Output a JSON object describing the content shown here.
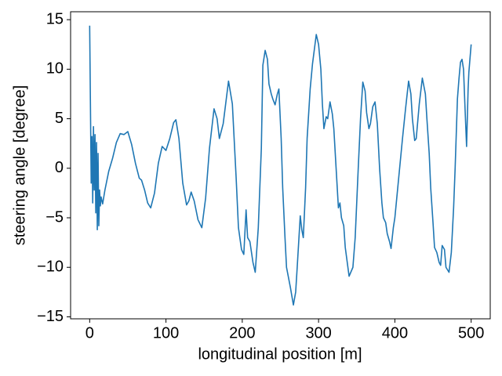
{
  "chart_data": {
    "type": "line",
    "xlabel": "longitudinal position [m]",
    "ylabel": "steering angle [degree]",
    "series": [
      {
        "color": "#1f77b4",
        "x": [
          0,
          2,
          3,
          4,
          5,
          6,
          7,
          8,
          9,
          10,
          11,
          12,
          13,
          14,
          15,
          17,
          20,
          25,
          30,
          35,
          40,
          45,
          50,
          55,
          60,
          65,
          68,
          72,
          76,
          80,
          85,
          90,
          95,
          100,
          105,
          110,
          113,
          117,
          122,
          127,
          130,
          133,
          137,
          142,
          147,
          152,
          157,
          163,
          167,
          170,
          175,
          182,
          187,
          192,
          195,
          199,
          202,
          205,
          207,
          210,
          214,
          217,
          221,
          225,
          227,
          230,
          233,
          235,
          238,
          240,
          243,
          246,
          248,
          251,
          253,
          256,
          258,
          263,
          267,
          270,
          272,
          276,
          278,
          280,
          283,
          285,
          289,
          292,
          297,
          300,
          303,
          305,
          307,
          310,
          312,
          315,
          318,
          320,
          323,
          326,
          328,
          330,
          333,
          335,
          340,
          345,
          348,
          352,
          355,
          358,
          361,
          363,
          366,
          368,
          371,
          374,
          377,
          380,
          383,
          385,
          388,
          390,
          393,
          395,
          398,
          400,
          405,
          410,
          414,
          418,
          421,
          423,
          426,
          428,
          432,
          436,
          440,
          442,
          445,
          447,
          450,
          452,
          455,
          458,
          460,
          462,
          465,
          467,
          471,
          474,
          477,
          479,
          482,
          484,
          486,
          488,
          490,
          492,
          494,
          496,
          497,
          500
        ],
        "y": [
          14.4,
          -1.5,
          3.2,
          -3.5,
          4.2,
          -2.2,
          3.4,
          -4.5,
          2.6,
          -6.2,
          1.5,
          -5.8,
          -2.2,
          -3.8,
          -2.9,
          -3.6,
          -2.2,
          -0.3,
          1,
          2.6,
          3.5,
          3.4,
          3.7,
          2.4,
          0.5,
          -1,
          -1.2,
          -2.2,
          -3.5,
          -4,
          -2.5,
          0.5,
          2.2,
          1.8,
          3,
          4.6,
          4.9,
          3,
          -1.5,
          -3.7,
          -3.3,
          -2.4,
          -3.3,
          -5.2,
          -6,
          -3,
          2,
          6,
          5,
          3,
          4.5,
          8.8,
          6.5,
          -1,
          -6,
          -8.2,
          -8.7,
          -4.2,
          -7,
          -7.4,
          -9.5,
          -10.5,
          -6,
          2,
          10.4,
          11.9,
          11,
          8.5,
          7.5,
          7,
          6.4,
          7.5,
          8,
          3,
          -2,
          -7,
          -10,
          -12,
          -13.8,
          -12.5,
          -10,
          -4.8,
          -6.2,
          -7,
          -2,
          3,
          8,
          10.5,
          13.5,
          12.5,
          10,
          6.5,
          4,
          5.2,
          5,
          6.7,
          5.5,
          4,
          0,
          -4,
          -3.5,
          -5,
          -5.8,
          -8,
          -10.9,
          -10,
          -7,
          0,
          5,
          8.7,
          7.8,
          5.6,
          4,
          4.5,
          6.2,
          6.7,
          4.5,
          0,
          -3.5,
          -5,
          -5.5,
          -6.6,
          -7.4,
          -8.1,
          -6,
          -5,
          -1,
          3,
          6,
          8.8,
          7.5,
          5,
          2.8,
          3,
          6.5,
          9.1,
          7.5,
          5,
          1.5,
          -2,
          -5.5,
          -8,
          -8.5,
          -9.5,
          -9.8,
          -7.8,
          -8.2,
          -10,
          -10.5,
          -8.5,
          -4,
          0,
          7,
          9,
          10.7,
          11,
          10,
          6,
          2.2,
          8,
          9.7,
          12.5
        ]
      }
    ],
    "xlim": [
      -25,
      525
    ],
    "ylim": [
      -15.2,
      15.8
    ],
    "xticks": [
      0,
      100,
      200,
      300,
      400,
      500
    ],
    "yticks": [
      {
        "value": -15,
        "label": "−15"
      },
      {
        "value": -10,
        "label": "−10"
      },
      {
        "value": -5,
        "label": "−5"
      },
      0,
      5,
      10,
      15
    ]
  }
}
